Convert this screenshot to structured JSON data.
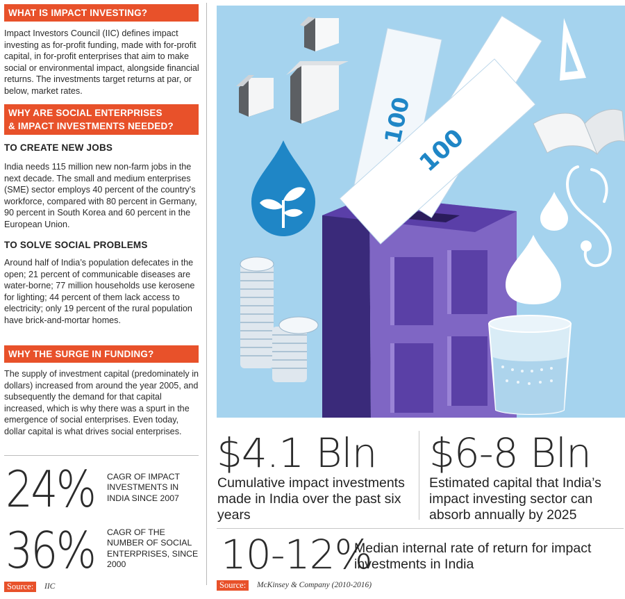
{
  "left": {
    "what_header": "WHAT IS IMPACT INVESTING?",
    "what_body": "Impact Investors Council (IIC) defines impact investing as for-profit funding, made with for-profit capital, in for-profit enterprises that aim to make social or environmental impact, alongside financial returns. The investments target returns at par, or below, market rates.",
    "why_header_line1": "WHY ARE SOCIAL ENTERPRISES",
    "why_header_line2": "& IMPACT INVESTMENTS NEEDED?",
    "jobs_subheader": "TO CREATE NEW JOBS",
    "jobs_body": "India needs 115 million new non-farm jobs in the next decade. The small and medium enterprises (SME) sector employs 40 percent of the country’s workforce, compared with 80 percent in Germany, 90 percent in South Korea and 60 percent in the European Union.",
    "social_subheader": "TO SOLVE SOCIAL PROBLEMS",
    "social_body": "Around half of India’s population defecates in the open; 21 percent of communicable diseases are water-borne; 77 million households use kerosene for lighting; 44 percent of them lack access to electricity; only 19 percent of the rural population have brick-and-mortar homes.",
    "surge_header": "WHY THE SURGE IN FUNDING?",
    "surge_body": "The supply of investment capital (predominately in dollars) increased from around the year 2005, and subsequently the demand for that capital increased, which is why there was a spurt in the emergence of social enterprises. Even today, dollar capital is what drives social enterprises.",
    "stat1_value": "24%",
    "stat1_desc": "CAGR of impact investments in India since 2007",
    "stat2_value": "36%",
    "stat2_desc": "CAGR of the number of social enterprises, since 2000",
    "source_label": "Source:",
    "source_text": "IIC"
  },
  "right": {
    "illustration_banknote_text": "100",
    "fig1_value": "$4.1 Bln",
    "fig1_desc": "Cumulative impact investments made in India over the past six years",
    "fig2_value": "$6-8 Bln",
    "fig2_desc": "Estimated capital that India’s impact investing sector can absorb annually by 2025",
    "fig3_value": "10-12%",
    "fig3_desc": "Median internal rate of return for impact investments in India",
    "source_label": "Source:",
    "source_text": "McKinsey & Company (2010-2016)"
  },
  "colors": {
    "accent_orange": "#e8512a",
    "sky_blue": "#a5d3ee",
    "building_purple": "#6a4bb5",
    "water_blue": "#1f86c6"
  }
}
